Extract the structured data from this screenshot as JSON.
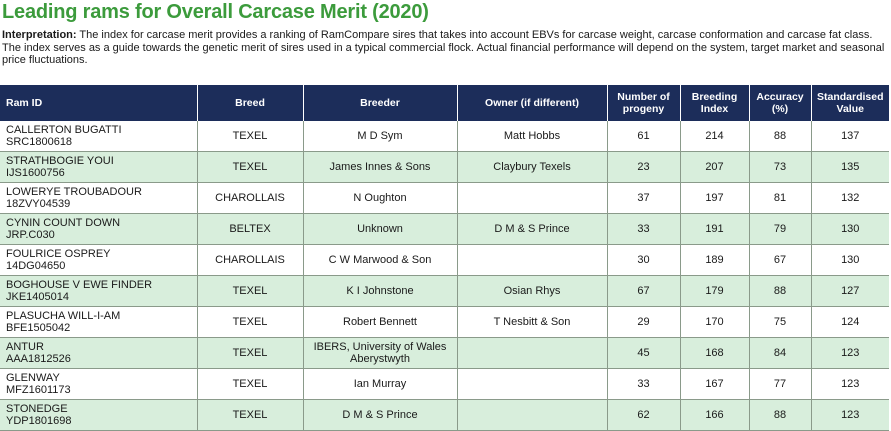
{
  "header": {
    "title": "Leading rams for Overall Carcase Merit (2020)",
    "interpretation_label": "Interpretation:",
    "interpretation": "The index for carcase merit provides a ranking of RamCompare sires that takes into account EBVs for carcase weight, carcase conformation and carcase fat class. The index serves as a guide towards the genetic merit of sires used in a typical commercial flock. Actual financial performance will depend on the system, target market and seasonal price fluctuations."
  },
  "table": {
    "headers": [
      "Ram ID",
      "Breed",
      "Breeder",
      "Owner (if different)",
      "Number of progeny",
      "Breeding Index",
      "Accuracy (%)",
      "Standardised Value"
    ],
    "rows": [
      {
        "name": "CALLERTON BUGATTI",
        "id": "SRC1800618",
        "breed": "TEXEL",
        "breeder": "M D Sym",
        "owner": "Matt Hobbs",
        "progeny": 61,
        "index": 214,
        "accuracy": 88,
        "value": 137
      },
      {
        "name": "STRATHBOGIE YOUI",
        "id": "IJS1600756",
        "breed": "TEXEL",
        "breeder": "James Innes & Sons",
        "owner": "Claybury Texels",
        "progeny": 23,
        "index": 207,
        "accuracy": 73,
        "value": 135
      },
      {
        "name": "LOWERYE TROUBADOUR",
        "id": "18ZVY04539",
        "breed": "CHAROLLAIS",
        "breeder": "N Oughton",
        "progeny": 37,
        "index": 197,
        "accuracy": 81,
        "value": 132
      },
      {
        "name": "CYNIN COUNT DOWN",
        "id": "JRP.C030",
        "breed": "BELTEX",
        "breeder": "Unknown",
        "owner": "D M & S Prince",
        "progeny": 33,
        "index": 191,
        "accuracy": 79,
        "value": 130
      },
      {
        "name": "FOULRICE OSPREY",
        "id": "14DG04650",
        "breed": "CHAROLLAIS",
        "breeder": "C W Marwood & Son",
        "progeny": 30,
        "index": 189,
        "accuracy": 67,
        "value": 130
      },
      {
        "name": "BOGHOUSE V EWE FINDER",
        "id": "JKE1405014",
        "breed": "TEXEL",
        "breeder": "K I Johnstone",
        "owner": "Osian Rhys",
        "progeny": 67,
        "index": 179,
        "accuracy": 88,
        "value": 127
      },
      {
        "name": "PLASUCHA WILL-I-AM",
        "id": "BFE1505042",
        "breed": "TEXEL",
        "breeder": "Robert Bennett",
        "owner": "T Nesbitt & Son",
        "progeny": 29,
        "index": 170,
        "accuracy": 75,
        "value": 124
      },
      {
        "name": "ANTUR",
        "id": "AAA1812526",
        "breed": "TEXEL",
        "breeder": "IBERS, University of Wales Aberystwyth",
        "progeny": 45,
        "index": 168,
        "accuracy": 84,
        "value": 123
      },
      {
        "name": "GLENWAY",
        "id": "MFZ1601173",
        "breed": "TEXEL",
        "breeder": "Ian Murray",
        "progeny": 33,
        "index": 167,
        "accuracy": 77,
        "value": 123
      },
      {
        "name": "STONEDGE",
        "id": "YDP1801698",
        "breed": "TEXEL",
        "breeder": "D M & S Prince",
        "progeny": 62,
        "index": 166,
        "accuracy": 88,
        "value": 123
      }
    ]
  }
}
